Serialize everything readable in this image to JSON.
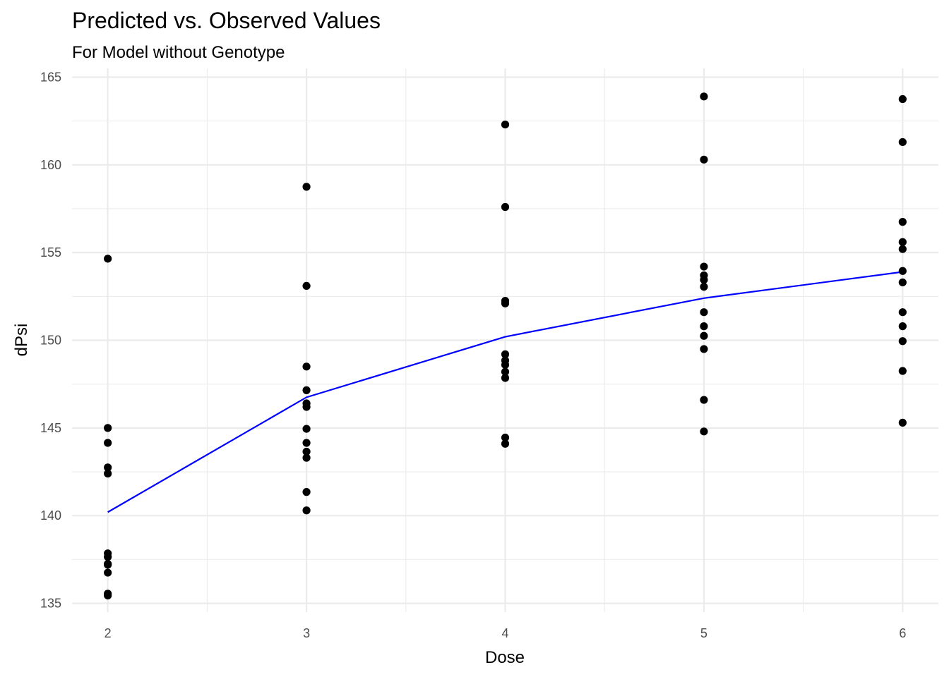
{
  "chart_data": {
    "type": "scatter",
    "title": "Predicted vs. Observed Values",
    "subtitle": "For Model without Genotype",
    "xlabel": "Dose",
    "ylabel": "dPsi",
    "xlim": [
      1.82,
      6.18
    ],
    "ylim": [
      134.5,
      165.5
    ],
    "xticks": [
      2,
      3,
      4,
      5,
      6
    ],
    "yticks": [
      135,
      140,
      145,
      150,
      155,
      160,
      165
    ],
    "grid": true,
    "legend": "none",
    "colors": {
      "points": "#000000",
      "line": "#0000ff",
      "grid": "#ebebeb"
    },
    "points": [
      {
        "x": 2,
        "y": 154.65
      },
      {
        "x": 2,
        "y": 145.0
      },
      {
        "x": 2,
        "y": 144.15
      },
      {
        "x": 2,
        "y": 142.75
      },
      {
        "x": 2,
        "y": 142.4
      },
      {
        "x": 2,
        "y": 137.85
      },
      {
        "x": 2,
        "y": 137.65
      },
      {
        "x": 2,
        "y": 137.25
      },
      {
        "x": 2,
        "y": 137.2
      },
      {
        "x": 2,
        "y": 136.75
      },
      {
        "x": 2,
        "y": 135.55
      },
      {
        "x": 2,
        "y": 135.45
      },
      {
        "x": 3,
        "y": 158.75
      },
      {
        "x": 3,
        "y": 153.1
      },
      {
        "x": 3,
        "y": 148.5
      },
      {
        "x": 3,
        "y": 147.15
      },
      {
        "x": 3,
        "y": 146.4
      },
      {
        "x": 3,
        "y": 146.2
      },
      {
        "x": 3,
        "y": 144.95
      },
      {
        "x": 3,
        "y": 144.15
      },
      {
        "x": 3,
        "y": 143.65
      },
      {
        "x": 3,
        "y": 143.3
      },
      {
        "x": 3,
        "y": 141.35
      },
      {
        "x": 3,
        "y": 140.3
      },
      {
        "x": 4,
        "y": 162.3
      },
      {
        "x": 4,
        "y": 157.6
      },
      {
        "x": 4,
        "y": 152.25
      },
      {
        "x": 4,
        "y": 152.1
      },
      {
        "x": 4,
        "y": 149.2
      },
      {
        "x": 4,
        "y": 148.85
      },
      {
        "x": 4,
        "y": 148.6
      },
      {
        "x": 4,
        "y": 148.2
      },
      {
        "x": 4,
        "y": 147.85
      },
      {
        "x": 4,
        "y": 144.45
      },
      {
        "x": 4,
        "y": 144.1
      },
      {
        "x": 5,
        "y": 163.9
      },
      {
        "x": 5,
        "y": 160.3
      },
      {
        "x": 5,
        "y": 154.2
      },
      {
        "x": 5,
        "y": 153.7
      },
      {
        "x": 5,
        "y": 153.45
      },
      {
        "x": 5,
        "y": 153.05
      },
      {
        "x": 5,
        "y": 151.6
      },
      {
        "x": 5,
        "y": 150.8
      },
      {
        "x": 5,
        "y": 150.25
      },
      {
        "x": 5,
        "y": 149.5
      },
      {
        "x": 5,
        "y": 146.6
      },
      {
        "x": 5,
        "y": 144.8
      },
      {
        "x": 6,
        "y": 163.75
      },
      {
        "x": 6,
        "y": 161.3
      },
      {
        "x": 6,
        "y": 156.75
      },
      {
        "x": 6,
        "y": 155.6
      },
      {
        "x": 6,
        "y": 155.2
      },
      {
        "x": 6,
        "y": 153.95
      },
      {
        "x": 6,
        "y": 153.3
      },
      {
        "x": 6,
        "y": 151.6
      },
      {
        "x": 6,
        "y": 150.8
      },
      {
        "x": 6,
        "y": 149.95
      },
      {
        "x": 6,
        "y": 148.25
      },
      {
        "x": 6,
        "y": 145.3
      }
    ],
    "line": [
      {
        "x": 2,
        "y": 140.2
      },
      {
        "x": 3,
        "y": 146.75
      },
      {
        "x": 4,
        "y": 150.2
      },
      {
        "x": 5,
        "y": 152.4
      },
      {
        "x": 6,
        "y": 153.9
      }
    ]
  }
}
